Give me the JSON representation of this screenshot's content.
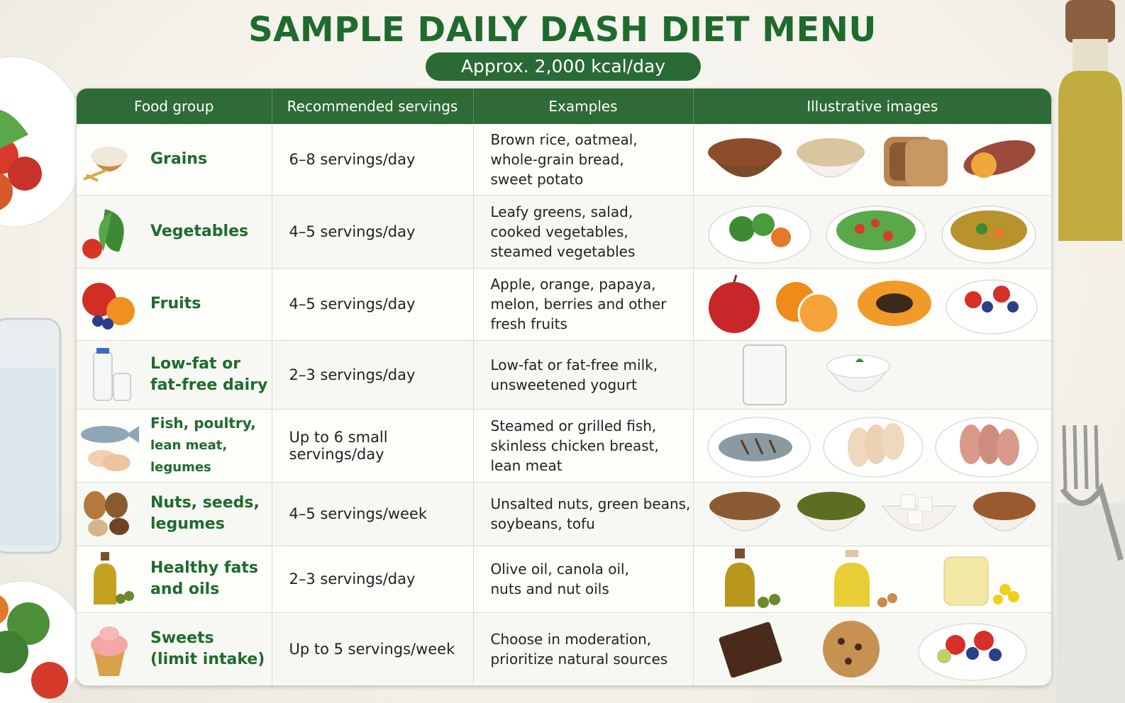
{
  "header": {
    "title": "SAMPLE DAILY DASH DIET MENU",
    "subtitle": "Approx. 2,000 kcal/day"
  },
  "table": {
    "columns": [
      "Food group",
      "Recommended servings",
      "Examples",
      "Illustrative images"
    ],
    "rows": [
      {
        "group": "Grains",
        "group_sub": "",
        "servings": "6–8 servings/day",
        "examples": "Brown rice, oatmeal,\nwhole-grain bread,\nsweet potato",
        "icon": "grains-icon",
        "images": [
          "brown-rice-icon",
          "oatmeal-icon",
          "bread-icon",
          "sweet-potato-icon"
        ]
      },
      {
        "group": "Vegetables",
        "group_sub": "",
        "servings": "4–5 servings/day",
        "examples": "Leafy greens, salad,\ncooked vegetables,\nsteamed vegetables",
        "icon": "vegetables-icon",
        "images": [
          "cooked-vegetables-icon",
          "salad-icon",
          "vegetable-soup-icon"
        ]
      },
      {
        "group": "Fruits",
        "group_sub": "",
        "servings": "4–5 servings/day",
        "examples": "Apple, orange, papaya,\nmelon, berries and other\nfresh fruits",
        "icon": "fruits-icon",
        "images": [
          "apple-icon",
          "orange-icon",
          "papaya-icon",
          "berries-bowl-icon"
        ]
      },
      {
        "group": "Low-fat or\nfat-free dairy",
        "group_sub": "",
        "servings": "2–3 servings/day",
        "examples": "Low-fat or fat-free milk,\nunsweetened yogurt",
        "icon": "dairy-icon",
        "images": [
          "milk-glass-icon",
          "yogurt-bowl-icon"
        ]
      },
      {
        "group": "Fish, poultry,",
        "group_sub": "lean meat, legumes",
        "servings": "Up to 6 small servings/day",
        "examples": "Steamed or grilled fish,\nskinless chicken breast,\nlean meat",
        "icon": "fish-poultry-icon",
        "images": [
          "grilled-fish-icon",
          "chicken-breast-icon",
          "lean-meat-icon"
        ]
      },
      {
        "group": "Nuts, seeds,\nlegumes",
        "group_sub": "",
        "servings": "4–5 servings/week",
        "examples": "Unsalted nuts, green beans,\nsoybeans, tofu",
        "icon": "nuts-icon",
        "images": [
          "nuts-bowl-icon",
          "green-beans-bowl-icon",
          "tofu-bowl-icon",
          "almonds-bowl-icon"
        ]
      },
      {
        "group": "Healthy fats\nand oils",
        "group_sub": "",
        "servings": "2–3 servings/day",
        "examples": "Olive oil, canola oil,\nnuts and nut oils",
        "icon": "oil-bottle-icon",
        "images": [
          "olive-oil-icon",
          "canola-oil-icon",
          "nut-oil-jar-icon"
        ]
      },
      {
        "group": "Sweets\n(limit intake)",
        "group_sub": "",
        "servings": "Up to 5 servings/week",
        "examples": "Choose in moderation,\nprioritize natural sources",
        "icon": "cupcake-icon",
        "images": [
          "chocolate-icon",
          "cookie-icon",
          "fruit-bowl-icon"
        ]
      }
    ]
  },
  "colors": {
    "title": "#1f6b2e",
    "header_bg": "#2e6b36",
    "group_text": "#1f6b2e"
  }
}
